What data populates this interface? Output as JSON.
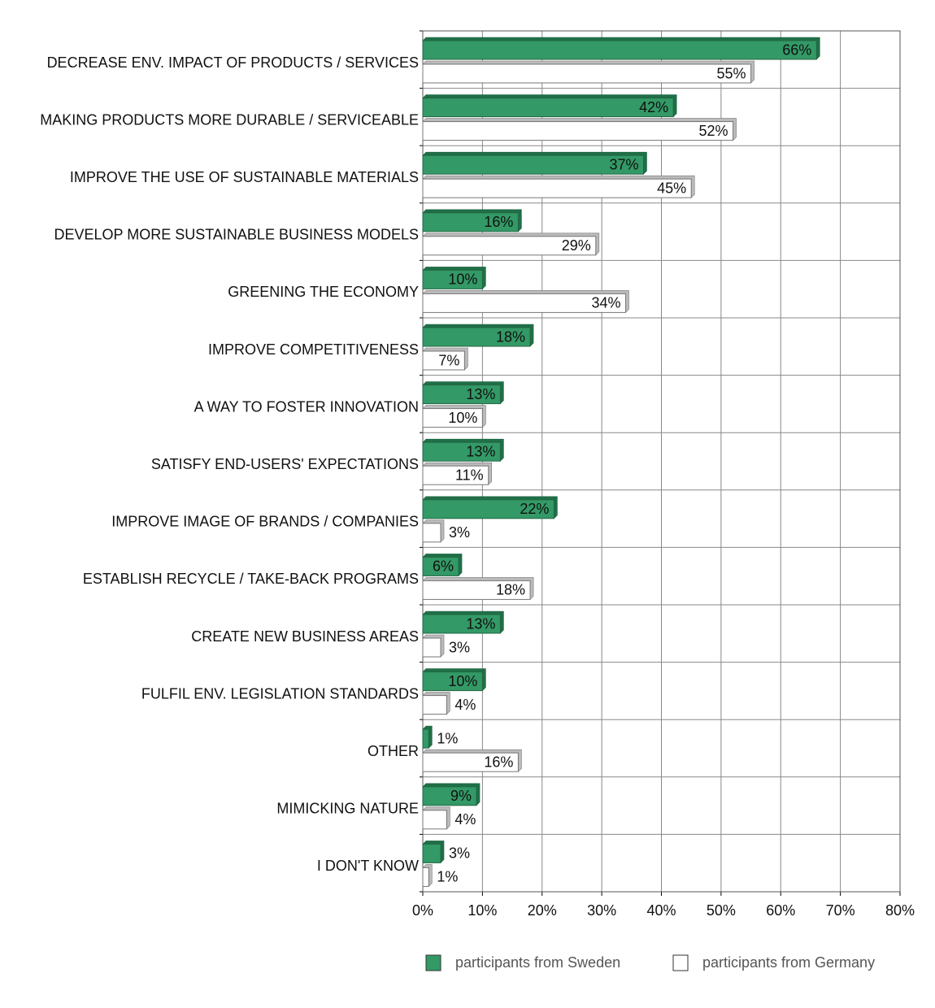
{
  "chart_data": {
    "type": "bar",
    "orientation": "horizontal",
    "categories": [
      "DECREASE ENV. IMPACT OF PRODUCTS / SERVICES",
      "MAKING PRODUCTS MORE DURABLE / SERVICEABLE",
      "IMPROVE THE USE OF SUSTAINABLE MATERIALS",
      "DEVELOP MORE SUSTAINABLE BUSINESS MODELS",
      "GREENING THE ECONOMY",
      "IMPROVE COMPETITIVENESS",
      "A WAY TO FOSTER INNOVATION",
      "SATISFY END-USERS' EXPECTATIONS",
      "IMPROVE IMAGE OF BRANDS / COMPANIES",
      "ESTABLISH RECYCLE / TAKE-BACK PROGRAMS",
      "CREATE NEW BUSINESS AREAS",
      "FULFIL ENV. LEGISLATION STANDARDS",
      "OTHER",
      "MIMICKING NATURE",
      "I DON'T KNOW"
    ],
    "series": [
      {
        "name": "participants from Sweden",
        "color": "#339966",
        "values": [
          66,
          42,
          37,
          16,
          10,
          18,
          13,
          13,
          22,
          6,
          13,
          10,
          1,
          9,
          3
        ],
        "value_labels": [
          "66%",
          "42%",
          "37%",
          "16%",
          "10%",
          "18%",
          "13%",
          "13%",
          "22%",
          "6%",
          "13%",
          "10%",
          "1%",
          "9%",
          "3%"
        ]
      },
      {
        "name": "participants from Germany",
        "color": "#ffffff",
        "values": [
          55,
          52,
          45,
          29,
          34,
          7,
          10,
          11,
          3,
          18,
          3,
          4,
          16,
          4,
          1
        ],
        "value_labels": [
          "55%",
          "52%",
          "45%",
          "29%",
          "34%",
          "7%",
          "10%",
          "11%",
          "3%",
          "18%",
          "3%",
          "4%",
          "16%",
          "4%",
          "1%"
        ]
      }
    ],
    "xlim": [
      0,
      80
    ],
    "xticks": [
      {
        "value": 0,
        "label": "0%"
      },
      {
        "value": 10,
        "label": "10%"
      },
      {
        "value": 20,
        "label": "20%"
      },
      {
        "value": 30,
        "label": "30%"
      },
      {
        "value": 40,
        "label": "40%"
      },
      {
        "value": 50,
        "label": "50%"
      },
      {
        "value": 60,
        "label": "60%"
      },
      {
        "value": 70,
        "label": "70%"
      },
      {
        "value": 80,
        "label": "80%"
      }
    ],
    "grid": true,
    "legend": "bottom"
  }
}
